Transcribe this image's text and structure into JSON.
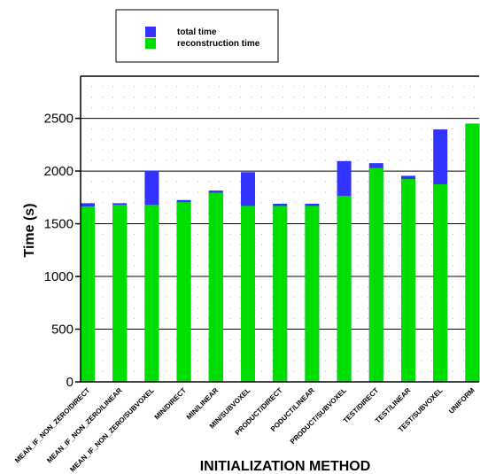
{
  "chart_data": {
    "type": "bar",
    "xlabel": "INITIALIZATION METHOD",
    "ylabel": "Time (s)",
    "ylim": [
      0,
      2900
    ],
    "yticks": [
      0,
      500,
      1000,
      1500,
      2000,
      2500
    ],
    "grid": true,
    "legend_position": "top-left",
    "colors": {
      "total": "#3333ff",
      "reconstruction": "#00dd00"
    },
    "categories": [
      "MEAN_IF_NON_ZERO/DIRECT",
      "MEAN_IF_NON_ZERO/LINEAR",
      "MEAN_IF_NON_ZERO/SUBVOXEL",
      "MIN/DIRECT",
      "MIN/LINEAR",
      "MIN/SUBVOXEL",
      "PRODUCT/DIRECT",
      "PODUCT/LINEAR",
      "PRODUCT/SUBVOXEL",
      "TEST/DIRECT",
      "TEST/LINEAR",
      "TEST/SUBVOXEL",
      "UNIFORM"
    ],
    "series": [
      {
        "name": "total time",
        "values": [
          1695,
          1695,
          2005,
          1725,
          1815,
          1990,
          1690,
          1690,
          2095,
          2075,
          1955,
          2395,
          2450
        ]
      },
      {
        "name": "reconstruction time",
        "values": [
          1665,
          1680,
          1680,
          1705,
          1795,
          1670,
          1670,
          1670,
          1765,
          2030,
          1925,
          1875,
          2450
        ]
      }
    ]
  }
}
